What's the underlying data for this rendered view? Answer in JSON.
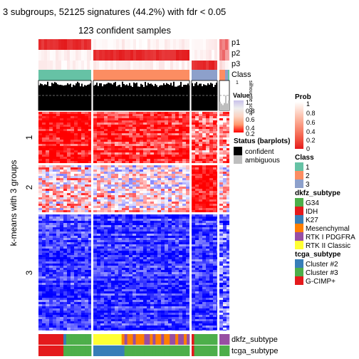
{
  "title": "3 subgroups, 52125 signatures (44.2%) with fdr < 0.05",
  "subtitle": "123 confident samples",
  "ylabel": "k-means with 3 groups",
  "top_annotation_labels": [
    "p1",
    "p2",
    "p3",
    "Class"
  ],
  "barplot_label": "silhouette score",
  "barplot_ticks": [
    "1",
    "0"
  ],
  "bottom_annotation_labels": [
    "dkfz_subtype",
    "tcga_subtype"
  ],
  "chart_data": {
    "type": "heatmap",
    "title": "3 subgroups, 52125 signatures (44.2%) with fdr < 0.05",
    "subtitle": "123 confident samples",
    "ylabel": "k-means with 3 groups",
    "row_groups": [
      "1",
      "2",
      "3"
    ],
    "row_group_fractions": [
      0.24,
      0.22,
      0.54
    ],
    "column_groups": [
      "1",
      "2",
      "3",
      "ambiguous"
    ],
    "column_group_fractions": [
      0.285,
      0.52,
      0.14,
      0.13
    ],
    "color_scale": {
      "name": "Value",
      "low_color": "#0000ff",
      "mid_color": "#ffffff",
      "high_color": "#ff0000"
    },
    "legends": [
      {
        "name": "Value",
        "ticks": [
          "1",
          "0.8",
          "0.6",
          "0.4",
          "0.2"
        ],
        "colors": [
          "#c9c1ea",
          "#eeeeee",
          "#fbd2c1",
          "#ff9a6f",
          "#ff0000"
        ]
      },
      {
        "name": "Prob",
        "ticks": [
          "1",
          "0.8",
          "0.6",
          "0.4",
          "0.2",
          "0"
        ],
        "colors": [
          "#ffffff",
          "#fdd8cb",
          "#fcae97",
          "#f8826a",
          "#f15240",
          "#e41a1c"
        ]
      },
      {
        "name": "Status (barplots)",
        "entries": [
          {
            "label": "confident",
            "color": "#000000"
          },
          {
            "label": "ambiguous",
            "color": "#bebebe"
          }
        ]
      },
      {
        "name": "Class",
        "entries": [
          {
            "label": "1",
            "color": "#66c2a5"
          },
          {
            "label": "2",
            "color": "#fc8d62"
          },
          {
            "label": "3",
            "color": "#8da0cb"
          }
        ]
      },
      {
        "name": "dkfz_subtype",
        "entries": [
          {
            "label": "G34",
            "color": "#4daf4a"
          },
          {
            "label": "IDH",
            "color": "#e41a1c"
          },
          {
            "label": "K27",
            "color": "#377eb8"
          },
          {
            "label": "Mesenchymal",
            "color": "#ff7f00"
          },
          {
            "label": "RTK I PDGFRA",
            "color": "#984ea3"
          },
          {
            "label": "RTK II Classic",
            "color": "#ffff33"
          }
        ]
      },
      {
        "name": "tcga_subtype",
        "entries": [
          {
            "label": "Cluster #2",
            "color": "#377eb8"
          },
          {
            "label": "Cluster #3",
            "color": "#4daf4a"
          },
          {
            "label": "G-CIMP+",
            "color": "#e41a1c"
          }
        ]
      }
    ]
  }
}
